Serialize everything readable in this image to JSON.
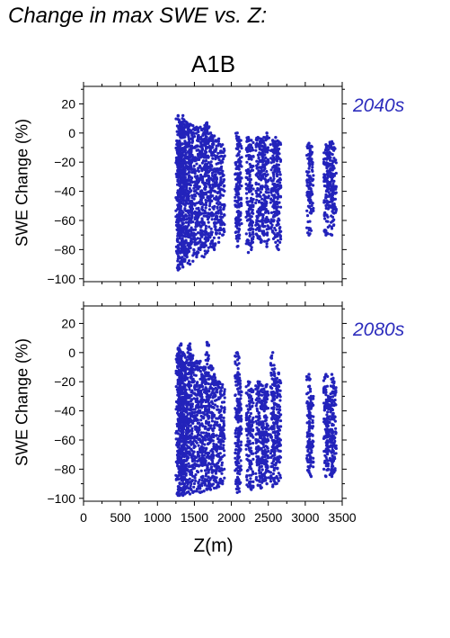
{
  "page": {
    "title": "Change in max SWE vs. Z:",
    "scenario": "A1B",
    "x_axis_label": "Z(m)"
  },
  "chart_data": [
    {
      "type": "scatter",
      "title": "2040s",
      "xlabel": "Z(m)",
      "ylabel": "SWE Change (%)",
      "xlim": [
        0,
        3500
      ],
      "ylim": [
        -102,
        32
      ],
      "xticks": [
        0,
        500,
        1000,
        1500,
        2000,
        2500,
        3000,
        3500
      ],
      "yticks": [
        20,
        0,
        -20,
        -40,
        -60,
        -80,
        -100
      ],
      "color": "#2323bb",
      "grid": false,
      "columns": [
        {
          "z": 1280,
          "y_min": -94,
          "y_max": 12
        },
        {
          "z": 1300,
          "y_min": -93,
          "y_max": 8
        },
        {
          "z": 1320,
          "y_min": -90,
          "y_max": 7
        },
        {
          "z": 1345,
          "y_min": -92,
          "y_max": 12
        },
        {
          "z": 1370,
          "y_min": -88,
          "y_max": 8
        },
        {
          "z": 1400,
          "y_min": -85,
          "y_max": 7
        },
        {
          "z": 1440,
          "y_min": -90,
          "y_max": 6
        },
        {
          "z": 1480,
          "y_min": -88,
          "y_max": 5
        },
        {
          "z": 1530,
          "y_min": -85,
          "y_max": 4
        },
        {
          "z": 1580,
          "y_min": -80,
          "y_max": 4
        },
        {
          "z": 1630,
          "y_min": -85,
          "y_max": 3
        },
        {
          "z": 1670,
          "y_min": -82,
          "y_max": 7
        },
        {
          "z": 1720,
          "y_min": -78,
          "y_max": 0
        },
        {
          "z": 1770,
          "y_min": -80,
          "y_max": -2
        },
        {
          "z": 1830,
          "y_min": -75,
          "y_max": -4
        },
        {
          "z": 1880,
          "y_min": -70,
          "y_max": -8
        },
        {
          "z": 2080,
          "y_min": -78,
          "y_max": 0
        },
        {
          "z": 2110,
          "y_min": -70,
          "y_max": -5
        },
        {
          "z": 2230,
          "y_min": -82,
          "y_max": -3
        },
        {
          "z": 2270,
          "y_min": -80,
          "y_max": -5
        },
        {
          "z": 2360,
          "y_min": -72,
          "y_max": -3
        },
        {
          "z": 2400,
          "y_min": -75,
          "y_max": -4
        },
        {
          "z": 2440,
          "y_min": -70,
          "y_max": -3
        },
        {
          "z": 2480,
          "y_min": -78,
          "y_max": 0
        },
        {
          "z": 2560,
          "y_min": -68,
          "y_max": -5
        },
        {
          "z": 2600,
          "y_min": -75,
          "y_max": -3
        },
        {
          "z": 2640,
          "y_min": -80,
          "y_max": -6
        },
        {
          "z": 3050,
          "y_min": -70,
          "y_max": -7
        },
        {
          "z": 3080,
          "y_min": -55,
          "y_max": -9
        },
        {
          "z": 3280,
          "y_min": -70,
          "y_max": -8
        },
        {
          "z": 3310,
          "y_min": -52,
          "y_max": -9
        },
        {
          "z": 3360,
          "y_min": -70,
          "y_max": -6
        },
        {
          "z": 3390,
          "y_min": -55,
          "y_max": -10
        }
      ]
    },
    {
      "type": "scatter",
      "title": "2080s",
      "xlabel": "Z(m)",
      "ylabel": "SWE Change (%)",
      "xlim": [
        0,
        3500
      ],
      "ylim": [
        -102,
        32
      ],
      "xticks": [
        0,
        500,
        1000,
        1500,
        2000,
        2500,
        3000,
        3500
      ],
      "yticks": [
        20,
        0,
        -20,
        -40,
        -60,
        -80,
        -100
      ],
      "color": "#2323bb",
      "grid": false,
      "columns": [
        {
          "z": 1280,
          "y_min": -98,
          "y_max": 3
        },
        {
          "z": 1300,
          "y_min": -98,
          "y_max": 0
        },
        {
          "z": 1320,
          "y_min": -97,
          "y_max": 6
        },
        {
          "z": 1345,
          "y_min": -98,
          "y_max": 0
        },
        {
          "z": 1370,
          "y_min": -97,
          "y_max": -2
        },
        {
          "z": 1400,
          "y_min": -96,
          "y_max": -5
        },
        {
          "z": 1440,
          "y_min": -97,
          "y_max": 6
        },
        {
          "z": 1480,
          "y_min": -96,
          "y_max": -2
        },
        {
          "z": 1530,
          "y_min": -95,
          "y_max": -6
        },
        {
          "z": 1580,
          "y_min": -96,
          "y_max": -6
        },
        {
          "z": 1630,
          "y_min": -95,
          "y_max": -10
        },
        {
          "z": 1670,
          "y_min": -94,
          "y_max": 7
        },
        {
          "z": 1720,
          "y_min": -94,
          "y_max": -9
        },
        {
          "z": 1770,
          "y_min": -93,
          "y_max": -15
        },
        {
          "z": 1830,
          "y_min": -92,
          "y_max": -20
        },
        {
          "z": 1880,
          "y_min": -90,
          "y_max": -22
        },
        {
          "z": 2080,
          "y_min": -96,
          "y_max": 0
        },
        {
          "z": 2110,
          "y_min": -90,
          "y_max": -18
        },
        {
          "z": 2230,
          "y_min": -92,
          "y_max": -20
        },
        {
          "z": 2270,
          "y_min": -94,
          "y_max": -25
        },
        {
          "z": 2360,
          "y_min": -91,
          "y_max": -20
        },
        {
          "z": 2400,
          "y_min": -93,
          "y_max": -22
        },
        {
          "z": 2440,
          "y_min": -88,
          "y_max": -25
        },
        {
          "z": 2480,
          "y_min": -90,
          "y_max": -22
        },
        {
          "z": 2560,
          "y_min": -92,
          "y_max": 0
        },
        {
          "z": 2600,
          "y_min": -90,
          "y_max": -18
        },
        {
          "z": 2640,
          "y_min": -88,
          "y_max": -14
        },
        {
          "z": 3050,
          "y_min": -82,
          "y_max": -15
        },
        {
          "z": 3080,
          "y_min": -85,
          "y_max": -30
        },
        {
          "z": 3280,
          "y_min": -85,
          "y_max": -15
        },
        {
          "z": 3310,
          "y_min": -80,
          "y_max": -30
        },
        {
          "z": 3360,
          "y_min": -85,
          "y_max": -15
        },
        {
          "z": 3390,
          "y_min": -82,
          "y_max": -20
        }
      ]
    }
  ]
}
